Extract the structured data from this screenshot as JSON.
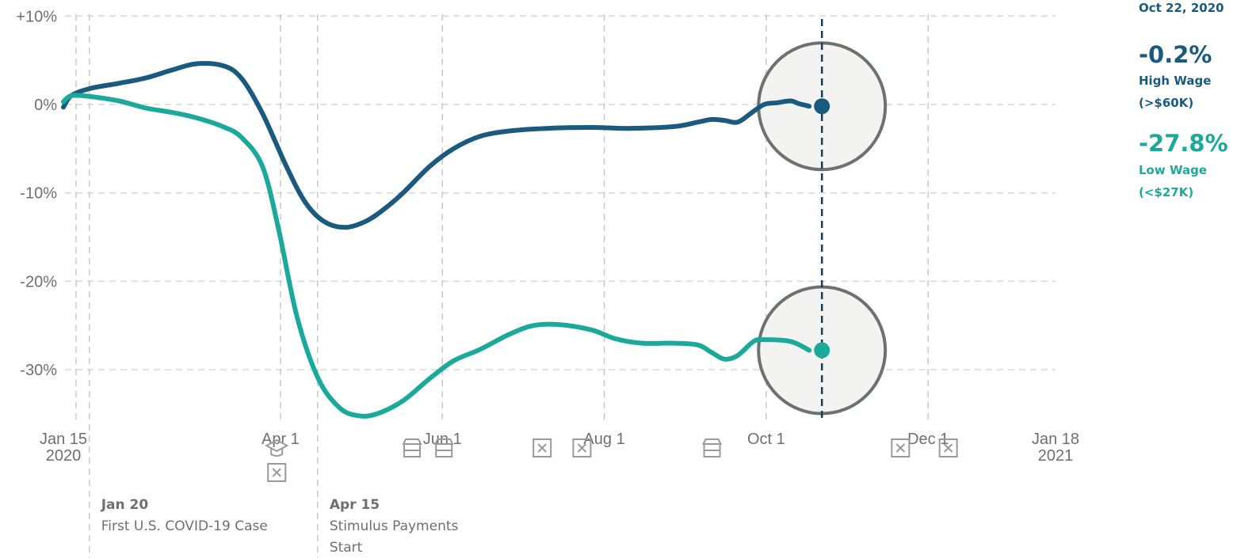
{
  "chart_data": {
    "type": "line",
    "date_label": "Oct 22, 2020",
    "y_ticks": [
      {
        "value": 10,
        "label": "+10%"
      },
      {
        "value": 0,
        "label": "0%"
      },
      {
        "value": -10,
        "label": "-10%"
      },
      {
        "value": -20,
        "label": "-20%"
      },
      {
        "value": -30,
        "label": "-30%"
      }
    ],
    "ylim": [
      -36,
      10
    ],
    "x_ticks": [
      {
        "date": "2020-01-15",
        "label": "Jan 15",
        "label2": "2020"
      },
      {
        "date": "2020-04-01",
        "label": "Apr 1"
      },
      {
        "date": "2020-06-01",
        "label": "Jun 1"
      },
      {
        "date": "2020-08-01",
        "label": "Aug 1"
      },
      {
        "date": "2020-10-01",
        "label": "Oct 1"
      },
      {
        "date": "2020-12-01",
        "label": "Dec 1"
      },
      {
        "date": "2021-01-18",
        "label": "Jan 18",
        "label2": "2021"
      }
    ],
    "xlim": [
      "2020-01-15",
      "2021-01-18"
    ],
    "grid": true,
    "series": [
      {
        "name": "High Wage (>$60K)",
        "label_value": "-0.2%",
        "label_line1": "High Wage",
        "label_line2": "(>$60K)",
        "color": "#1b5a7f",
        "points": [
          [
            "2020-01-15",
            -0.3
          ],
          [
            "2020-01-18",
            1.0
          ],
          [
            "2020-01-25",
            1.8
          ],
          [
            "2020-02-05",
            2.4
          ],
          [
            "2020-02-15",
            3.0
          ],
          [
            "2020-02-25",
            3.9
          ],
          [
            "2020-03-05",
            4.6
          ],
          [
            "2020-03-15",
            4.4
          ],
          [
            "2020-03-22",
            3.0
          ],
          [
            "2020-03-30",
            -1.0
          ],
          [
            "2020-04-08",
            -7.0
          ],
          [
            "2020-04-15",
            -11.0
          ],
          [
            "2020-04-22",
            -13.2
          ],
          [
            "2020-04-30",
            -13.9
          ],
          [
            "2020-05-08",
            -13.2
          ],
          [
            "2020-05-15",
            -11.8
          ],
          [
            "2020-05-22",
            -10.0
          ],
          [
            "2020-06-01",
            -7.0
          ],
          [
            "2020-06-10",
            -5.0
          ],
          [
            "2020-06-20",
            -3.6
          ],
          [
            "2020-07-01",
            -3.0
          ],
          [
            "2020-07-15",
            -2.7
          ],
          [
            "2020-08-01",
            -2.6
          ],
          [
            "2020-08-15",
            -2.7
          ],
          [
            "2020-09-01",
            -2.5
          ],
          [
            "2020-09-10",
            -2.0
          ],
          [
            "2020-09-15",
            -1.7
          ],
          [
            "2020-09-20",
            -1.8
          ],
          [
            "2020-09-25",
            -2.0
          ],
          [
            "2020-09-30",
            -1.0
          ],
          [
            "2020-10-05",
            0.0
          ],
          [
            "2020-10-10",
            0.2
          ],
          [
            "2020-10-15",
            0.4
          ],
          [
            "2020-10-18",
            0.1
          ],
          [
            "2020-10-22",
            -0.2
          ]
        ]
      },
      {
        "name": "Low Wage (<$27K)",
        "label_value": "-27.8%",
        "label_line1": "Low Wage",
        "label_line2": "(<$27K)",
        "color": "#1ba99b",
        "points": [
          [
            "2020-01-15",
            0.3
          ],
          [
            "2020-01-18",
            1.0
          ],
          [
            "2020-01-25",
            0.9
          ],
          [
            "2020-02-05",
            0.4
          ],
          [
            "2020-02-15",
            -0.4
          ],
          [
            "2020-02-25",
            -0.9
          ],
          [
            "2020-03-05",
            -1.5
          ],
          [
            "2020-03-15",
            -2.5
          ],
          [
            "2020-03-22",
            -3.7
          ],
          [
            "2020-03-30",
            -7.0
          ],
          [
            "2020-04-05",
            -14.0
          ],
          [
            "2020-04-12",
            -24.0
          ],
          [
            "2020-04-20",
            -31.0
          ],
          [
            "2020-04-28",
            -34.3
          ],
          [
            "2020-05-05",
            -35.2
          ],
          [
            "2020-05-12",
            -35.0
          ],
          [
            "2020-05-22",
            -33.5
          ],
          [
            "2020-06-01",
            -31.0
          ],
          [
            "2020-06-10",
            -29.0
          ],
          [
            "2020-06-20",
            -27.7
          ],
          [
            "2020-07-01",
            -26.0
          ],
          [
            "2020-07-10",
            -25.0
          ],
          [
            "2020-07-20",
            -24.9
          ],
          [
            "2020-08-01",
            -25.5
          ],
          [
            "2020-08-10",
            -26.5
          ],
          [
            "2020-08-20",
            -27.0
          ],
          [
            "2020-09-01",
            -27.0
          ],
          [
            "2020-09-10",
            -27.2
          ],
          [
            "2020-09-15",
            -28.0
          ],
          [
            "2020-09-20",
            -28.8
          ],
          [
            "2020-09-25",
            -28.4
          ],
          [
            "2020-10-01",
            -26.8
          ],
          [
            "2020-10-05",
            -26.6
          ],
          [
            "2020-10-15",
            -26.8
          ],
          [
            "2020-10-22",
            -27.8
          ]
        ]
      }
    ],
    "markers": [
      {
        "date": "2020-01-20",
        "title": "Jan 20",
        "text": [
          "First U.S. COVID-19 Case"
        ],
        "show_label": true
      },
      {
        "date": "2020-03-30",
        "icons": [
          "school-icon",
          "closure-x-icon"
        ]
      },
      {
        "date": "2020-04-15",
        "title": "Apr 15",
        "text": [
          "Stimulus Payments",
          "Start"
        ],
        "show_label": true
      },
      {
        "date": "2020-05-20",
        "icons": [
          "store-icon"
        ]
      },
      {
        "date": "2020-06-01",
        "icons": [
          "store-icon"
        ]
      },
      {
        "date": "2020-07-08",
        "icons": [
          "closure-x-icon"
        ]
      },
      {
        "date": "2020-07-23",
        "icons": [
          "closure-x-icon"
        ]
      },
      {
        "date": "2020-09-10",
        "icons": [
          "store-icon"
        ]
      },
      {
        "date": "2020-11-20",
        "icons": [
          "closure-x-icon"
        ]
      },
      {
        "date": "2020-12-08",
        "icons": [
          "closure-x-icon"
        ]
      }
    ],
    "current_date": "2020-10-22"
  }
}
